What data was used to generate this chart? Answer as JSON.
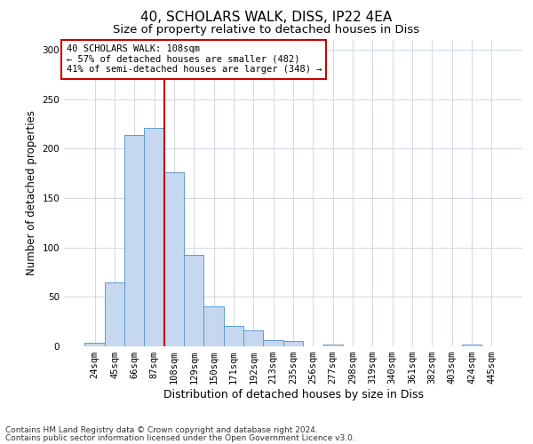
{
  "title1": "40, SCHOLARS WALK, DISS, IP22 4EA",
  "title2": "Size of property relative to detached houses in Diss",
  "xlabel": "Distribution of detached houses by size in Diss",
  "ylabel": "Number of detached properties",
  "categories": [
    "24sqm",
    "45sqm",
    "66sqm",
    "87sqm",
    "108sqm",
    "129sqm",
    "150sqm",
    "171sqm",
    "192sqm",
    "213sqm",
    "235sqm",
    "256sqm",
    "277sqm",
    "298sqm",
    "319sqm",
    "340sqm",
    "361sqm",
    "382sqm",
    "403sqm",
    "424sqm",
    "445sqm"
  ],
  "values": [
    4,
    65,
    214,
    221,
    176,
    93,
    40,
    21,
    16,
    6,
    5,
    0,
    2,
    0,
    0,
    0,
    0,
    0,
    0,
    2,
    0
  ],
  "bar_color": "#c5d8f0",
  "bar_edge_color": "#5b9bd5",
  "vline_color": "#cc0000",
  "annotation_text": "40 SCHOLARS WALK: 108sqm\n← 57% of detached houses are smaller (482)\n41% of semi-detached houses are larger (348) →",
  "annotation_box_color": "#ffffff",
  "annotation_box_edge_color": "#cc0000",
  "ylim": [
    0,
    310
  ],
  "yticks": [
    0,
    50,
    100,
    150,
    200,
    250,
    300
  ],
  "footer1": "Contains HM Land Registry data © Crown copyright and database right 2024.",
  "footer2": "Contains public sector information licensed under the Open Government Licence v3.0.",
  "bg_color": "#ffffff",
  "grid_color": "#d0d8e8",
  "title1_fontsize": 11,
  "title2_fontsize": 9.5,
  "xlabel_fontsize": 9,
  "ylabel_fontsize": 8.5,
  "footer_fontsize": 6.5,
  "tick_fontsize": 7.5,
  "ann_fontsize": 7.5
}
